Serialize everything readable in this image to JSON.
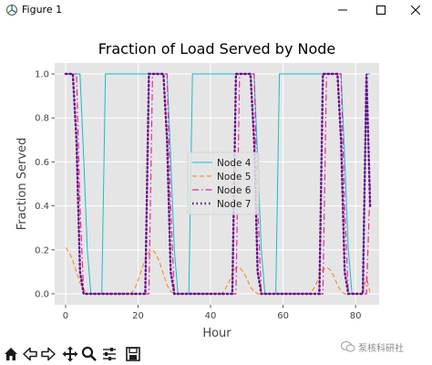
{
  "window": {
    "title": "Figure 1"
  },
  "toolbar": {
    "tools": [
      {
        "name": "home-icon"
      },
      {
        "name": "back-icon"
      },
      {
        "name": "forward-icon"
      },
      {
        "name": "pan-icon"
      },
      {
        "name": "zoom-icon"
      },
      {
        "name": "configure-subplots-icon"
      },
      {
        "name": "save-icon"
      }
    ]
  },
  "watermark": {
    "text": "泵核科研社"
  },
  "chart_data": {
    "type": "line",
    "title": "Fraction of Load Served by Node",
    "xlabel": "Hour",
    "ylabel": "Fraction Served",
    "xlim": [
      -3,
      86.5
    ],
    "ylim": [
      -0.05,
      1.05
    ],
    "xticks": [
      0,
      20,
      40,
      60,
      80
    ],
    "yticks": [
      0.0,
      0.2,
      0.4,
      0.6,
      0.8,
      1.0
    ],
    "grid": true,
    "legend_position": "center",
    "series": [
      {
        "name": "Node 4",
        "color": "#17becf",
        "style": "solid",
        "x": [
          0,
          4,
          5,
          6,
          7,
          8,
          9,
          10,
          11,
          28,
          29,
          30,
          31,
          32,
          33,
          34,
          35,
          52,
          53,
          54,
          55,
          56,
          57,
          58,
          59,
          76,
          77,
          78,
          79,
          80,
          81,
          82,
          83,
          84
        ],
        "y": [
          1.0,
          1.0,
          0.62,
          0.2,
          0.0,
          0.0,
          0.0,
          0.0,
          1.0,
          1.0,
          0.62,
          0.2,
          0.0,
          0.0,
          0.0,
          0.0,
          1.0,
          1.0,
          0.62,
          0.2,
          0.0,
          0.0,
          0.0,
          0.0,
          1.0,
          1.0,
          0.62,
          0.2,
          0.0,
          0.0,
          0.0,
          0.0,
          1.0,
          1.0
        ]
      },
      {
        "name": "Node 5",
        "color": "#ff7f0e",
        "style": "dashed",
        "x": [
          0,
          1,
          2,
          3,
          4,
          5,
          6,
          7,
          8,
          9,
          10,
          11,
          12,
          13,
          14,
          15,
          16,
          17,
          18,
          19,
          20,
          21,
          22,
          23,
          24,
          25,
          26,
          27,
          28,
          29,
          30,
          31,
          32,
          33,
          34,
          35,
          36,
          37,
          38,
          39,
          40,
          41,
          42,
          43,
          44,
          45,
          46,
          47,
          48,
          49,
          50,
          51,
          52,
          53,
          54,
          55,
          56,
          57,
          58,
          59,
          60,
          61,
          62,
          63,
          64,
          65,
          66,
          67,
          68,
          69,
          70,
          71,
          72,
          73,
          74,
          75,
          76,
          77,
          78,
          79,
          80,
          81,
          82,
          83,
          84
        ],
        "y": [
          0.21,
          0.19,
          0.15,
          0.1,
          0.05,
          0.02,
          0.0,
          0.0,
          0.0,
          0.0,
          0.0,
          0.0,
          0.0,
          0.0,
          0.0,
          0.0,
          0.0,
          0.0,
          0.0,
          0.02,
          0.06,
          0.11,
          0.16,
          0.19,
          0.2,
          0.18,
          0.14,
          0.09,
          0.04,
          0.01,
          0.0,
          0.0,
          0.0,
          0.0,
          0.0,
          0.0,
          0.0,
          0.0,
          0.0,
          0.0,
          0.0,
          0.0,
          0.0,
          0.0,
          0.02,
          0.05,
          0.09,
          0.12,
          0.12,
          0.1,
          0.07,
          0.03,
          0.01,
          0.0,
          0.0,
          0.0,
          0.0,
          0.0,
          0.0,
          0.0,
          0.0,
          0.0,
          0.0,
          0.0,
          0.0,
          0.0,
          0.0,
          0.0,
          0.01,
          0.04,
          0.08,
          0.11,
          0.12,
          0.11,
          0.08,
          0.04,
          0.01,
          0.0,
          0.0,
          0.0,
          0.0,
          0.0,
          0.0,
          0.08,
          0.0
        ]
      },
      {
        "name": "Node 6",
        "color": "#e7298a",
        "style": "dashdot",
        "x": [
          0,
          2,
          3,
          4,
          5,
          6,
          7,
          8,
          9,
          10,
          11,
          12,
          13,
          14,
          15,
          16,
          17,
          18,
          19,
          20,
          21,
          22,
          23,
          24,
          25,
          26,
          27,
          28,
          29,
          30,
          31,
          32,
          33,
          34,
          35,
          36,
          37,
          38,
          39,
          40,
          41,
          42,
          43,
          44,
          45,
          46,
          47,
          48,
          49,
          50,
          51,
          52,
          53,
          54,
          55,
          56,
          57,
          58,
          59,
          60,
          61,
          62,
          63,
          64,
          65,
          66,
          67,
          68,
          69,
          70,
          71,
          72,
          73,
          74,
          75,
          76,
          77,
          78,
          79,
          80,
          81,
          82,
          83,
          84
        ],
        "y": [
          1.0,
          1.0,
          1.0,
          0.4,
          0.0,
          0.0,
          0.0,
          0.0,
          0.0,
          0.0,
          0.0,
          0.0,
          0.0,
          0.0,
          0.0,
          0.0,
          0.0,
          0.0,
          0.0,
          0.0,
          0.0,
          0.0,
          0.0,
          1.0,
          1.0,
          1.0,
          1.0,
          1.0,
          0.4,
          0.0,
          0.0,
          0.0,
          0.0,
          0.0,
          0.0,
          0.0,
          0.0,
          0.0,
          0.0,
          0.0,
          0.0,
          0.0,
          0.0,
          0.0,
          0.0,
          0.0,
          0.0,
          1.0,
          1.0,
          1.0,
          1.0,
          1.0,
          0.4,
          0.0,
          0.0,
          0.0,
          0.0,
          0.0,
          0.0,
          0.0,
          0.0,
          0.0,
          0.0,
          0.0,
          0.0,
          0.0,
          0.0,
          0.0,
          0.0,
          0.0,
          0.0,
          1.0,
          1.0,
          1.0,
          1.0,
          1.0,
          0.4,
          0.0,
          0.0,
          0.0,
          0.0,
          0.0,
          0.0,
          0.5
        ]
      },
      {
        "name": "Node 7",
        "color": "#6a0d91",
        "style": "dotted",
        "x": [
          0,
          2,
          3,
          4,
          5,
          6,
          7,
          8,
          9,
          10,
          11,
          12,
          13,
          14,
          15,
          16,
          17,
          18,
          19,
          20,
          21,
          22,
          23,
          24,
          25,
          26,
          27,
          28,
          29,
          30,
          31,
          32,
          33,
          34,
          35,
          36,
          37,
          38,
          39,
          40,
          41,
          42,
          43,
          44,
          45,
          46,
          47,
          48,
          49,
          50,
          51,
          52,
          53,
          54,
          55,
          56,
          57,
          58,
          59,
          60,
          61,
          62,
          63,
          64,
          65,
          66,
          67,
          68,
          69,
          70,
          71,
          72,
          73,
          74,
          75,
          76,
          77,
          78,
          79,
          80,
          81,
          82,
          83,
          84
        ],
        "y": [
          1.0,
          1.0,
          0.7,
          0.1,
          0.0,
          0.0,
          0.0,
          0.0,
          0.0,
          0.0,
          0.0,
          0.0,
          0.0,
          0.0,
          0.0,
          0.0,
          0.0,
          0.0,
          0.0,
          0.0,
          0.0,
          0.0,
          1.0,
          1.0,
          1.0,
          1.0,
          1.0,
          0.7,
          0.1,
          0.0,
          0.0,
          0.0,
          0.0,
          0.0,
          0.0,
          0.0,
          0.0,
          0.0,
          0.0,
          0.0,
          0.0,
          0.0,
          0.0,
          0.0,
          0.0,
          0.0,
          1.0,
          1.0,
          1.0,
          1.0,
          1.0,
          0.7,
          0.1,
          0.0,
          0.0,
          0.0,
          0.0,
          0.0,
          0.0,
          0.0,
          0.0,
          0.0,
          0.0,
          0.0,
          0.0,
          0.0,
          0.0,
          0.0,
          0.0,
          0.0,
          1.0,
          1.0,
          1.0,
          1.0,
          1.0,
          0.7,
          0.1,
          0.0,
          0.0,
          0.0,
          0.0,
          0.0,
          1.0,
          0.4
        ]
      }
    ]
  }
}
